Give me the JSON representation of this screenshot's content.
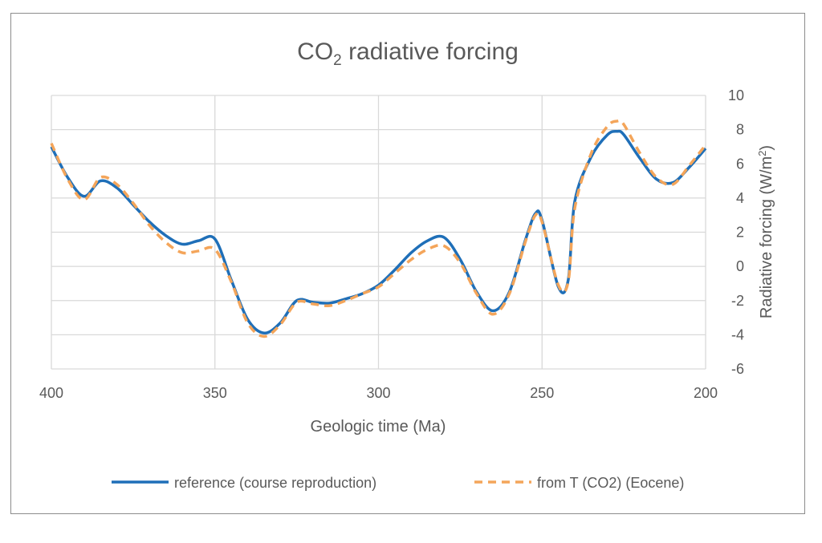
{
  "chart_data": {
    "type": "line",
    "title": "CO",
    "title_subscript": "2",
    "title_suffix": " radiative forcing",
    "xlabel": "Geologic time (Ma)",
    "ylabel": "Radiative forcing (W/m",
    "ylabel_superscript": "2",
    "ylabel_suffix": ")",
    "x_reversed": true,
    "xlim": [
      400,
      200
    ],
    "ylim": [
      -6,
      10
    ],
    "x_ticks": [
      400,
      350,
      300,
      250,
      200
    ],
    "y_ticks": [
      10,
      8,
      6,
      4,
      2,
      0,
      -2,
      -4,
      -6
    ],
    "y_axis_side": "right",
    "grid": true,
    "legend_position": "bottom",
    "series": [
      {
        "name": "reference (course reproduction)",
        "color": "#1f6fb8",
        "style": "solid",
        "x": [
          400,
          395,
          390,
          385,
          380,
          375,
          370,
          365,
          360,
          355,
          350,
          345,
          340,
          335,
          330,
          325,
          320,
          315,
          310,
          305,
          300,
          295,
          290,
          285,
          280,
          275,
          270,
          265,
          260,
          255,
          252,
          250,
          245,
          242,
          240,
          235,
          230,
          227,
          225,
          220,
          215,
          210,
          205,
          200
        ],
        "y": [
          7.0,
          5.2,
          4.1,
          5.0,
          4.6,
          3.6,
          2.6,
          1.8,
          1.3,
          1.5,
          1.6,
          -0.8,
          -3.1,
          -3.9,
          -3.3,
          -2.0,
          -2.1,
          -2.15,
          -1.9,
          -1.6,
          -1.1,
          -0.2,
          0.8,
          1.5,
          1.7,
          0.4,
          -1.5,
          -2.6,
          -1.5,
          1.6,
          3.1,
          2.7,
          -1.2,
          -0.8,
          3.8,
          6.4,
          7.7,
          7.9,
          7.7,
          6.3,
          5.1,
          4.9,
          5.8,
          6.9
        ]
      },
      {
        "name": "from T (CO2) (Eocene)",
        "color": "#f4a55a",
        "style": "dashed",
        "x": [
          400,
          395,
          390,
          385,
          380,
          375,
          370,
          365,
          360,
          355,
          350,
          345,
          340,
          335,
          330,
          325,
          320,
          315,
          310,
          305,
          300,
          295,
          290,
          285,
          280,
          275,
          270,
          265,
          260,
          255,
          252,
          250,
          245,
          242,
          240,
          235,
          230,
          227,
          225,
          220,
          215,
          210,
          205,
          200
        ],
        "y": [
          7.2,
          5.1,
          3.9,
          5.2,
          4.8,
          3.7,
          2.4,
          1.4,
          0.8,
          0.9,
          1.0,
          -0.9,
          -3.3,
          -4.1,
          -3.4,
          -2.1,
          -2.2,
          -2.3,
          -2.0,
          -1.6,
          -1.2,
          -0.4,
          0.4,
          1.0,
          1.2,
          0.2,
          -1.6,
          -2.8,
          -1.6,
          1.5,
          3.0,
          2.6,
          -1.1,
          -0.9,
          3.4,
          6.6,
          8.2,
          8.5,
          8.3,
          6.6,
          5.2,
          4.8,
          5.9,
          7.1
        ]
      }
    ]
  }
}
